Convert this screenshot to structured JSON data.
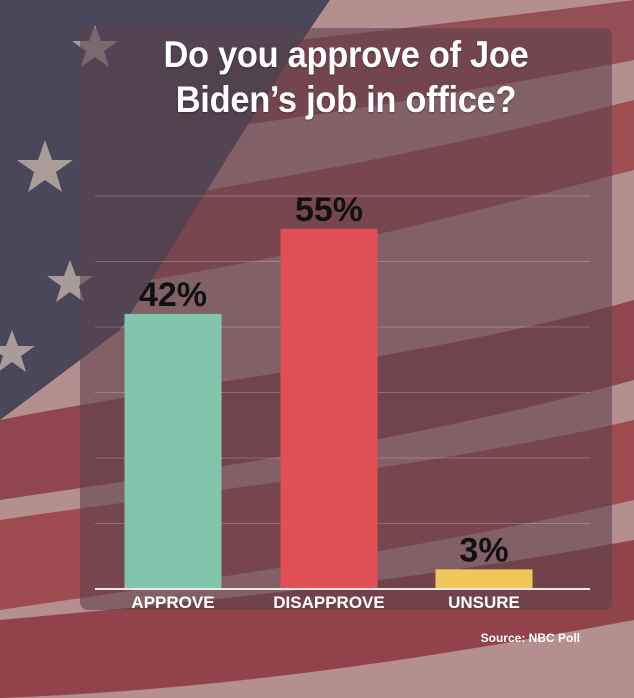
{
  "colors": {
    "approve": "#82c5ad",
    "disapprove": "#e05054",
    "unsure": "#f0c85a",
    "panel": "#5c424c"
  },
  "chart_data": {
    "type": "bar",
    "title": "Do you approve of Joe Biden’s job in office?",
    "categories": [
      "APPROVE",
      "DISAPPROVE",
      "UNSURE"
    ],
    "values": [
      42,
      55,
      3
    ],
    "value_labels": [
      "42%",
      "55%",
      "3%"
    ],
    "ylim": [
      0,
      60
    ],
    "grid": true,
    "legend": "none",
    "source": "Source: NBC Poll"
  }
}
